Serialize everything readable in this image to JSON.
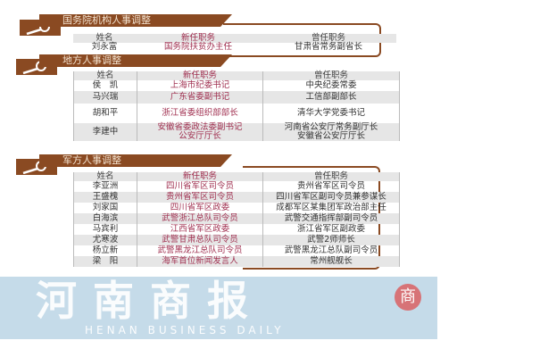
{
  "sections": [
    {
      "title": "国务院机构人事调整",
      "headers": [
        "姓名",
        "新任职务",
        "曾任职务"
      ],
      "rows": [
        [
          "刘永富",
          "国务院扶贫办主任",
          "甘肃省常务副省长"
        ]
      ]
    },
    {
      "title": "地方人事调整",
      "headers": [
        "姓名",
        "新任职务",
        "曾任职务"
      ],
      "rows": [
        [
          "侯　凯",
          "上海市纪委书记",
          "中央纪委常委"
        ],
        [
          "马兴瑞",
          "广东省委副书记",
          "工信部副部长"
        ],
        [
          "胡和平",
          "浙江省委组织部部长",
          "清华大学党委书记"
        ],
        [
          "李建中",
          "安徽省委政法委副书记\n公安厅厅长",
          "河南省公安厅常务副厅长\n安徽省公安厅厅长"
        ]
      ]
    },
    {
      "title": "军方人事调整",
      "headers": [
        "姓名",
        "新任职务",
        "曾任职务"
      ],
      "rows": [
        [
          "李亚洲",
          "四川省军区司令员",
          "贵州省军区司令员"
        ],
        [
          "王盛槐",
          "贵州省军区司令员",
          "四川省军区副司令员兼参谋长"
        ],
        [
          "刘家国",
          "四川省军区政委",
          "成都军区某集团军政治部主任"
        ],
        [
          "白海滨",
          "武警浙江总队司令员",
          "武警交通指挥部副司令员"
        ],
        [
          "马宾利",
          "江西省军区政委",
          "浙江省军区副政委"
        ],
        [
          "尤寒波",
          "武警甘肃总队司令员",
          "武警2师师长"
        ],
        [
          "杨立新",
          "武警黑龙江总队司令员",
          "武警黑龙江总队副司令员"
        ],
        [
          "梁　阳",
          "海军首位新闻发言人",
          "常州舰舰长"
        ]
      ]
    }
  ],
  "watermark": {
    "text": "河南商报",
    "english": "HENAN BUSINESS DAILY",
    "seal": "商"
  },
  "colors": {
    "accent": "#8a4a22",
    "new_post": "#a03050",
    "watermark": "#96bed7"
  }
}
